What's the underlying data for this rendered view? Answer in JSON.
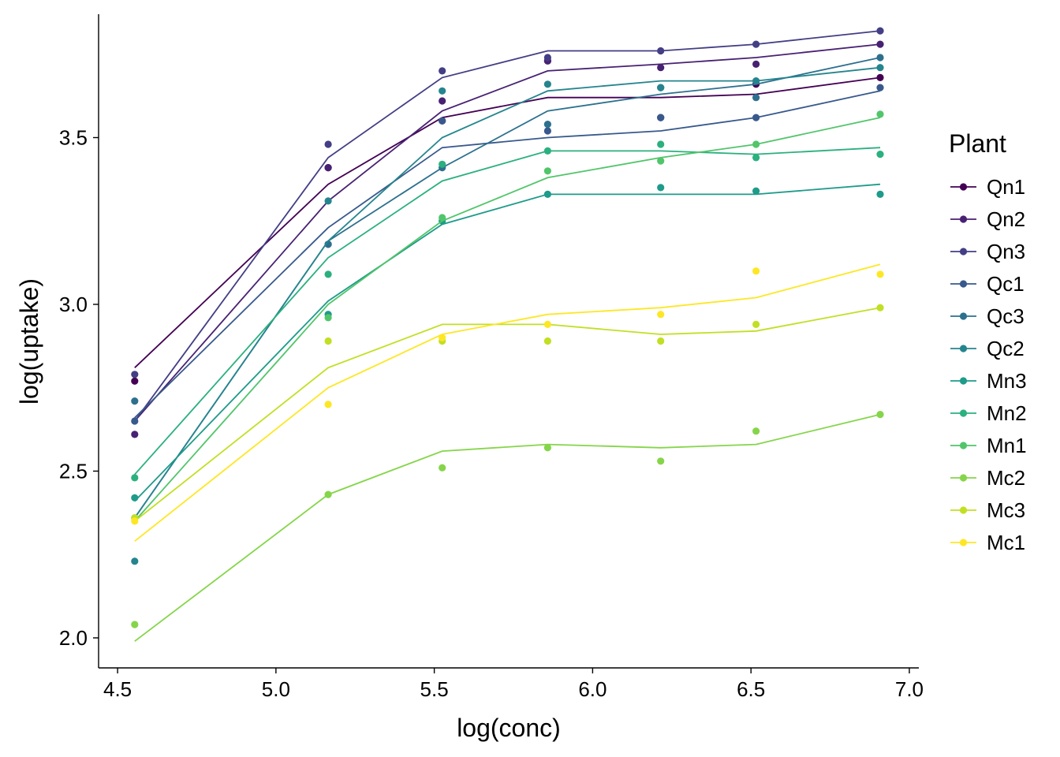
{
  "chart_data": {
    "type": "line",
    "xlabel": "log(conc)",
    "ylabel": "log(uptake)",
    "xlim": [
      4.44,
      7.03
    ],
    "ylim": [
      1.91,
      3.87
    ],
    "x_ticks": [
      "4.5",
      "5.0",
      "5.5",
      "6.0",
      "6.5",
      "7.0"
    ],
    "y_ticks": [
      "2.0",
      "2.5",
      "3.0",
      "3.5"
    ],
    "grid": false,
    "legend": {
      "title": "Plant",
      "placement": "right"
    },
    "x": [
      4.554,
      5.165,
      5.525,
      5.858,
      6.215,
      6.516,
      6.908
    ],
    "series": [
      {
        "name": "Qn1",
        "color": "#440154",
        "points": [
          2.77,
          3.41,
          3.55,
          3.73,
          3.56,
          3.66,
          3.68
        ],
        "fit": [
          2.81,
          3.36,
          3.56,
          3.62,
          3.62,
          3.63,
          3.68
        ]
      },
      {
        "name": "Qn2",
        "color": "#482173",
        "points": [
          2.61,
          3.41,
          3.61,
          3.73,
          3.71,
          3.72,
          3.78
        ],
        "fit": [
          2.65,
          3.31,
          3.58,
          3.7,
          3.72,
          3.74,
          3.78
        ]
      },
      {
        "name": "Qn3",
        "color": "#433E85",
        "points": [
          2.79,
          3.48,
          3.7,
          3.74,
          3.76,
          3.78,
          3.82
        ],
        "fit": [
          2.65,
          3.44,
          3.68,
          3.76,
          3.76,
          3.78,
          3.82
        ]
      },
      {
        "name": "Qc1",
        "color": "#38598C",
        "points": [
          2.65,
          3.18,
          3.55,
          3.52,
          3.56,
          3.56,
          3.65
        ],
        "fit": [
          2.66,
          3.23,
          3.47,
          3.5,
          3.52,
          3.56,
          3.64
        ]
      },
      {
        "name": "Qc3",
        "color": "#2D708E",
        "points": [
          2.71,
          3.18,
          3.41,
          3.54,
          3.65,
          3.62,
          3.74
        ],
        "fit": [
          2.36,
          3.19,
          3.41,
          3.58,
          3.63,
          3.66,
          3.74
        ]
      },
      {
        "name": "Qc2",
        "color": "#25858E",
        "points": [
          2.23,
          3.31,
          3.64,
          3.66,
          3.65,
          3.67,
          3.71
        ],
        "fit": [
          2.36,
          3.19,
          3.5,
          3.64,
          3.67,
          3.67,
          3.71
        ]
      },
      {
        "name": "Mn3",
        "color": "#1E9B8A",
        "points": [
          2.42,
          2.97,
          3.25,
          3.33,
          3.35,
          3.34,
          3.33
        ],
        "fit": [
          2.41,
          3.01,
          3.24,
          3.33,
          3.33,
          3.33,
          3.36
        ]
      },
      {
        "name": "Mn2",
        "color": "#2BB07F",
        "points": [
          2.48,
          3.09,
          3.42,
          3.46,
          3.48,
          3.44,
          3.45
        ],
        "fit": [
          2.49,
          3.14,
          3.37,
          3.46,
          3.46,
          3.45,
          3.47
        ]
      },
      {
        "name": "Mn1",
        "color": "#51C56A",
        "points": [
          2.36,
          2.96,
          3.26,
          3.4,
          3.43,
          3.48,
          3.57
        ],
        "fit": [
          2.35,
          3.0,
          3.25,
          3.38,
          3.44,
          3.48,
          3.56
        ]
      },
      {
        "name": "Mc2",
        "color": "#85D54A",
        "points": [
          2.04,
          2.43,
          2.51,
          2.57,
          2.53,
          2.62,
          2.67
        ],
        "fit": [
          1.99,
          2.43,
          2.56,
          2.58,
          2.57,
          2.58,
          2.67
        ]
      },
      {
        "name": "Mc3",
        "color": "#C2DF23",
        "points": [
          2.36,
          2.89,
          2.89,
          2.89,
          2.89,
          2.94,
          2.99
        ],
        "fit": [
          2.35,
          2.81,
          2.94,
          2.94,
          2.91,
          2.92,
          2.99
        ]
      },
      {
        "name": "Mc1",
        "color": "#FDE725",
        "points": [
          2.35,
          2.7,
          2.9,
          2.94,
          2.97,
          3.1,
          3.09
        ],
        "fit": [
          2.29,
          2.75,
          2.91,
          2.97,
          2.99,
          3.02,
          3.12
        ]
      }
    ]
  }
}
